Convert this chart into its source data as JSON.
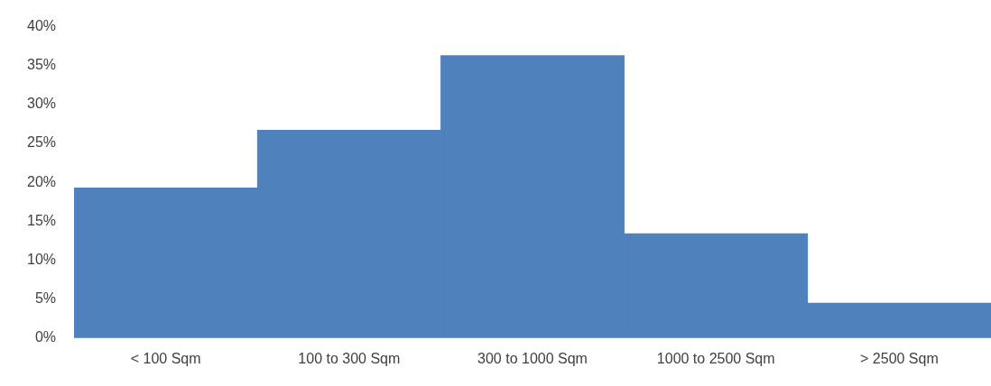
{
  "chart_data": {
    "type": "bar",
    "categories": [
      "< 100 Sqm",
      "100 to 300 Sqm",
      "300 to 1000 Sqm",
      "1000 to 2500 Sqm",
      "> 2500 Sqm"
    ],
    "values": [
      19.3,
      26.7,
      36.3,
      13.4,
      4.5
    ],
    "color": "#4f81bd",
    "ylim": [
      0,
      40
    ],
    "yticks": [
      {
        "value": 0,
        "label": "0%"
      },
      {
        "value": 5,
        "label": "5%"
      },
      {
        "value": 10,
        "label": "10%"
      },
      {
        "value": 15,
        "label": "15%"
      },
      {
        "value": 20,
        "label": "20%"
      },
      {
        "value": 25,
        "label": "25%"
      },
      {
        "value": 30,
        "label": "30%"
      },
      {
        "value": 35,
        "label": "35%"
      },
      {
        "value": 40,
        "label": "40%"
      }
    ],
    "grid": false,
    "legend": false
  }
}
